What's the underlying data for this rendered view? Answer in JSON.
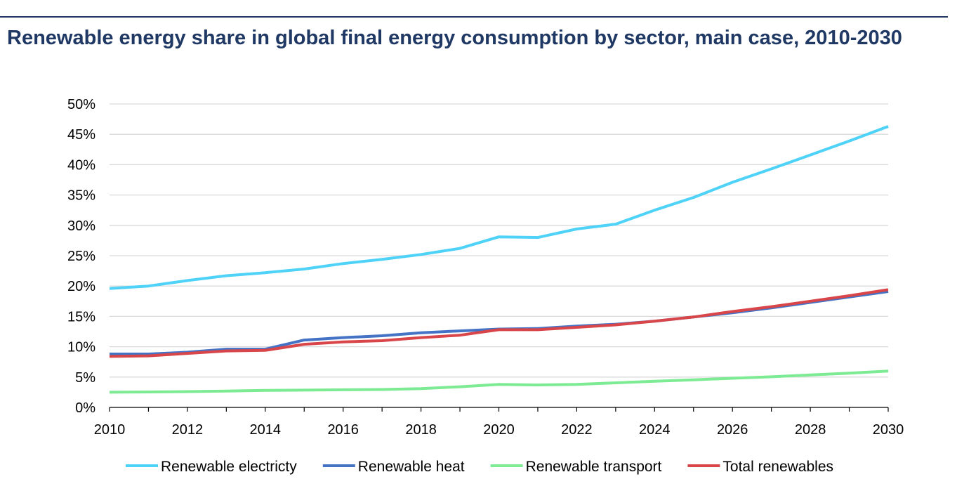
{
  "chart_data": {
    "type": "line",
    "title": "Renewable energy share in global final energy consumption by sector, main case, 2010-2030",
    "xlabel": "",
    "ylabel": "",
    "x": [
      2010,
      2011,
      2012,
      2013,
      2014,
      2015,
      2016,
      2017,
      2018,
      2019,
      2020,
      2021,
      2022,
      2023,
      2024,
      2025,
      2026,
      2027,
      2028,
      2029,
      2030
    ],
    "x_ticks": [
      "2010",
      "2012",
      "2014",
      "2016",
      "2018",
      "2020",
      "2022",
      "2024",
      "2026",
      "2028",
      "2030"
    ],
    "y_ticks": [
      "0%",
      "5%",
      "10%",
      "15%",
      "20%",
      "25%",
      "30%",
      "35%",
      "40%",
      "45%",
      "50%"
    ],
    "ylim": [
      0,
      50
    ],
    "xlim": [
      2010,
      2030
    ],
    "grid": "horizontal",
    "legend_position": "bottom",
    "series": [
      {
        "name": "Renewable electricty",
        "color": "#4fd2f8",
        "values": [
          19.6,
          20.0,
          20.9,
          21.7,
          22.2,
          22.8,
          23.7,
          24.4,
          25.2,
          26.2,
          28.1,
          28.0,
          29.4,
          30.2,
          32.5,
          34.6,
          37.1,
          39.3,
          41.6,
          43.9,
          46.3
        ]
      },
      {
        "name": "Renewable heat",
        "color": "#4472c4",
        "values": [
          8.8,
          8.8,
          9.1,
          9.6,
          9.6,
          11.1,
          11.5,
          11.8,
          12.3,
          12.6,
          12.9,
          13.0,
          13.4,
          13.7,
          14.2,
          14.9,
          15.6,
          16.4,
          17.3,
          18.2,
          19.1
        ]
      },
      {
        "name": "Renewable transport",
        "color": "#7ceb93",
        "values": [
          2.5,
          2.55,
          2.6,
          2.7,
          2.8,
          2.85,
          2.9,
          2.95,
          3.1,
          3.4,
          3.8,
          3.7,
          3.8,
          4.05,
          4.3,
          4.55,
          4.8,
          5.05,
          5.35,
          5.65,
          6.0
        ]
      },
      {
        "name": "Total renewables",
        "color": "#d9464a",
        "values": [
          8.4,
          8.5,
          8.9,
          9.3,
          9.4,
          10.4,
          10.8,
          11.0,
          11.5,
          11.9,
          12.8,
          12.8,
          13.2,
          13.6,
          14.2,
          14.9,
          15.8,
          16.6,
          17.5,
          18.4,
          19.4
        ]
      }
    ]
  }
}
